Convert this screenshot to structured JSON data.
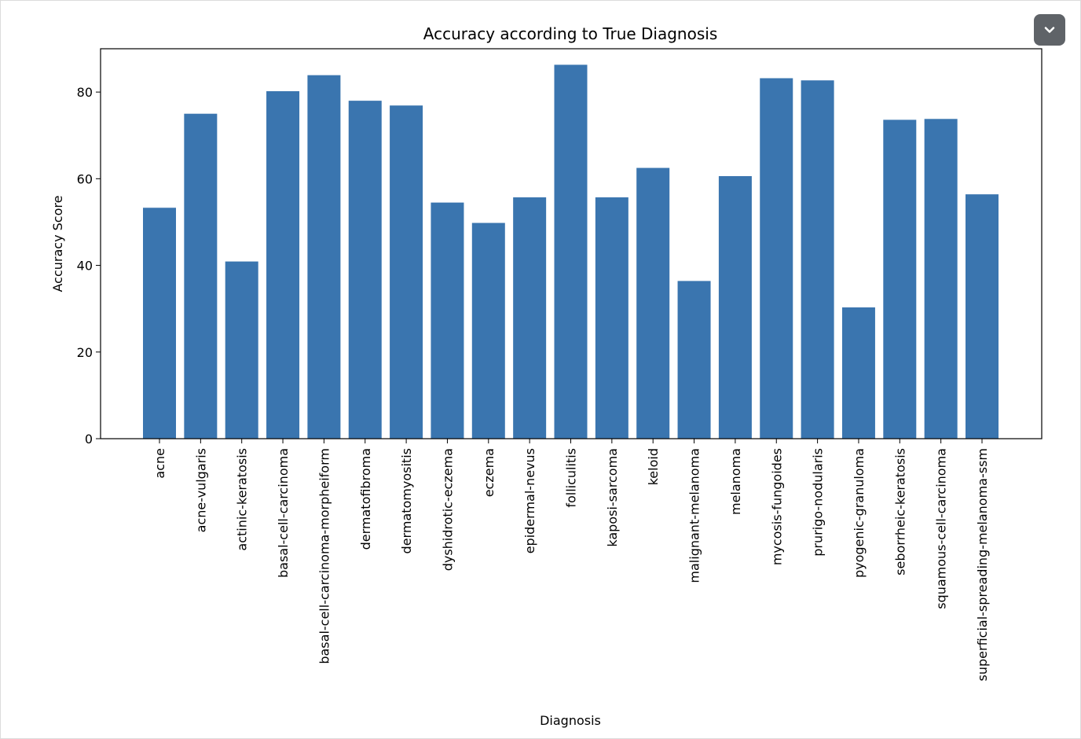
{
  "chart_data": {
    "type": "bar",
    "title": "Accuracy according to True Diagnosis",
    "xlabel": "Diagnosis",
    "ylabel": "Accuracy Score",
    "ylim": [
      0,
      90
    ],
    "yticks": [
      0,
      20,
      40,
      60,
      80
    ],
    "grid": false,
    "bar_color": "#3a75af",
    "categories": [
      "acne",
      "acne-vulgaris",
      "actinic-keratosis",
      "basal-cell-carcinoma",
      "basal-cell-carcinoma-morpheiform",
      "dermatofibroma",
      "dermatomyositis",
      "dyshidrotic-eczema",
      "eczema",
      "epidermal-nevus",
      "folliculitis",
      "kaposi-sarcoma",
      "keloid",
      "malignant-melanoma",
      "melanoma",
      "mycosis-fungoides",
      "prurigo-nodularis",
      "pyogenic-granuloma",
      "seborrheic-keratosis",
      "squamous-cell-carcinoma",
      "superficial-spreading-melanoma-ssm"
    ],
    "values": [
      53.3,
      75.0,
      40.9,
      80.2,
      83.9,
      78.0,
      76.9,
      54.5,
      49.8,
      55.7,
      86.3,
      55.7,
      62.5,
      36.4,
      60.6,
      83.2,
      82.7,
      30.3,
      73.6,
      73.8,
      56.4
    ]
  },
  "toolbar": {
    "collapse_icon": "chevron-down-icon"
  }
}
